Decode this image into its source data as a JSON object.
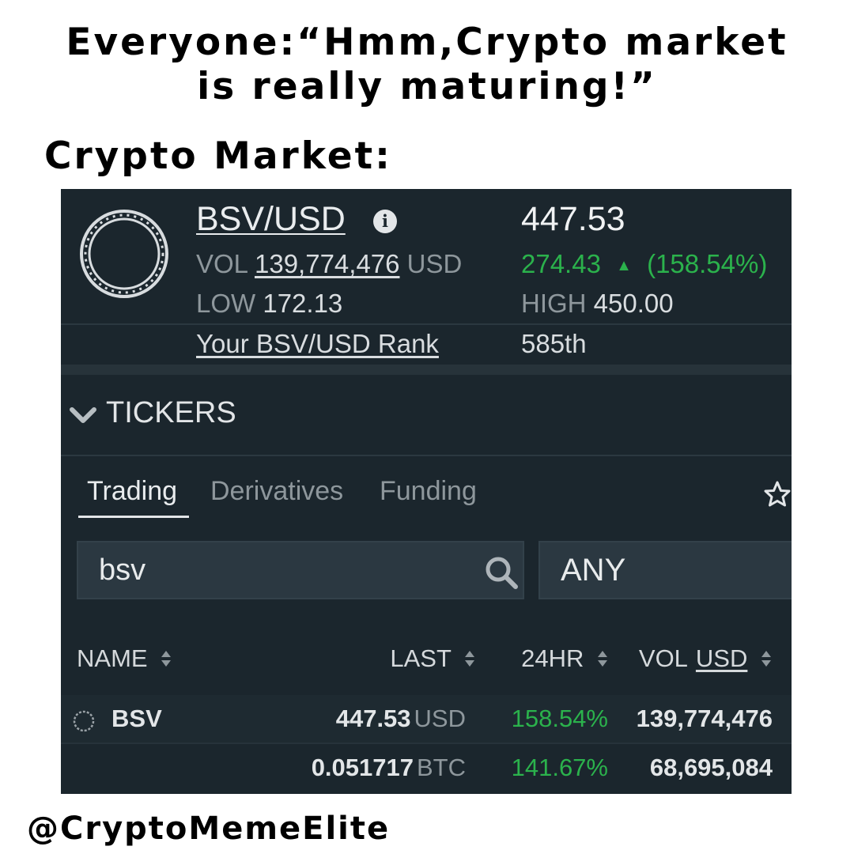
{
  "meme": {
    "line1": "Everyone:“Hmm,Crypto market",
    "line2": "is really maturing!”",
    "line3": "Crypto Market:",
    "handle": "@CryptoMemeElite"
  },
  "header": {
    "pair": "BSV/USD",
    "info_glyph": "i",
    "price": "447.53",
    "vol_label": "VOL",
    "vol_value": "139,774,476",
    "vol_unit": "USD",
    "change_value": "274.43",
    "change_arrow": "▲",
    "change_pct": "(158.54%)",
    "low_label": "LOW",
    "low_value": "172.13",
    "high_label": "HIGH",
    "high_value": "450.00",
    "rank_label": "Your BSV/USD Rank",
    "rank_value": "585th"
  },
  "tickers": {
    "title": "TICKERS",
    "tabs": [
      {
        "label": "Trading",
        "active": true
      },
      {
        "label": "Derivatives",
        "active": false
      },
      {
        "label": "Funding",
        "active": false
      }
    ],
    "search_value": "bsv",
    "filter_value": "ANY",
    "columns": {
      "name": "NAME",
      "last": "LAST",
      "change": "24HR",
      "vol": "VOL",
      "vol_unit": "USD"
    },
    "rows": [
      {
        "name": "BSV",
        "last": "447.53",
        "last_unit": "USD",
        "change": "158.54%",
        "vol": "139,774,476"
      },
      {
        "name": "",
        "last": "0.051717",
        "last_unit": "BTC",
        "change": "141.67%",
        "vol": "68,695,084"
      }
    ]
  },
  "icons": {
    "coin": "coin-ring-icon",
    "info": "info-icon",
    "chevron": "chevron-down-icon",
    "star": "star-icon",
    "search": "search-icon",
    "sort": "sort-arrows-icon"
  },
  "colors": {
    "panel_bg": "#1b262d",
    "positive": "#2bb24c",
    "muted_text": "#8e979c",
    "field_bg": "#2b3841"
  }
}
